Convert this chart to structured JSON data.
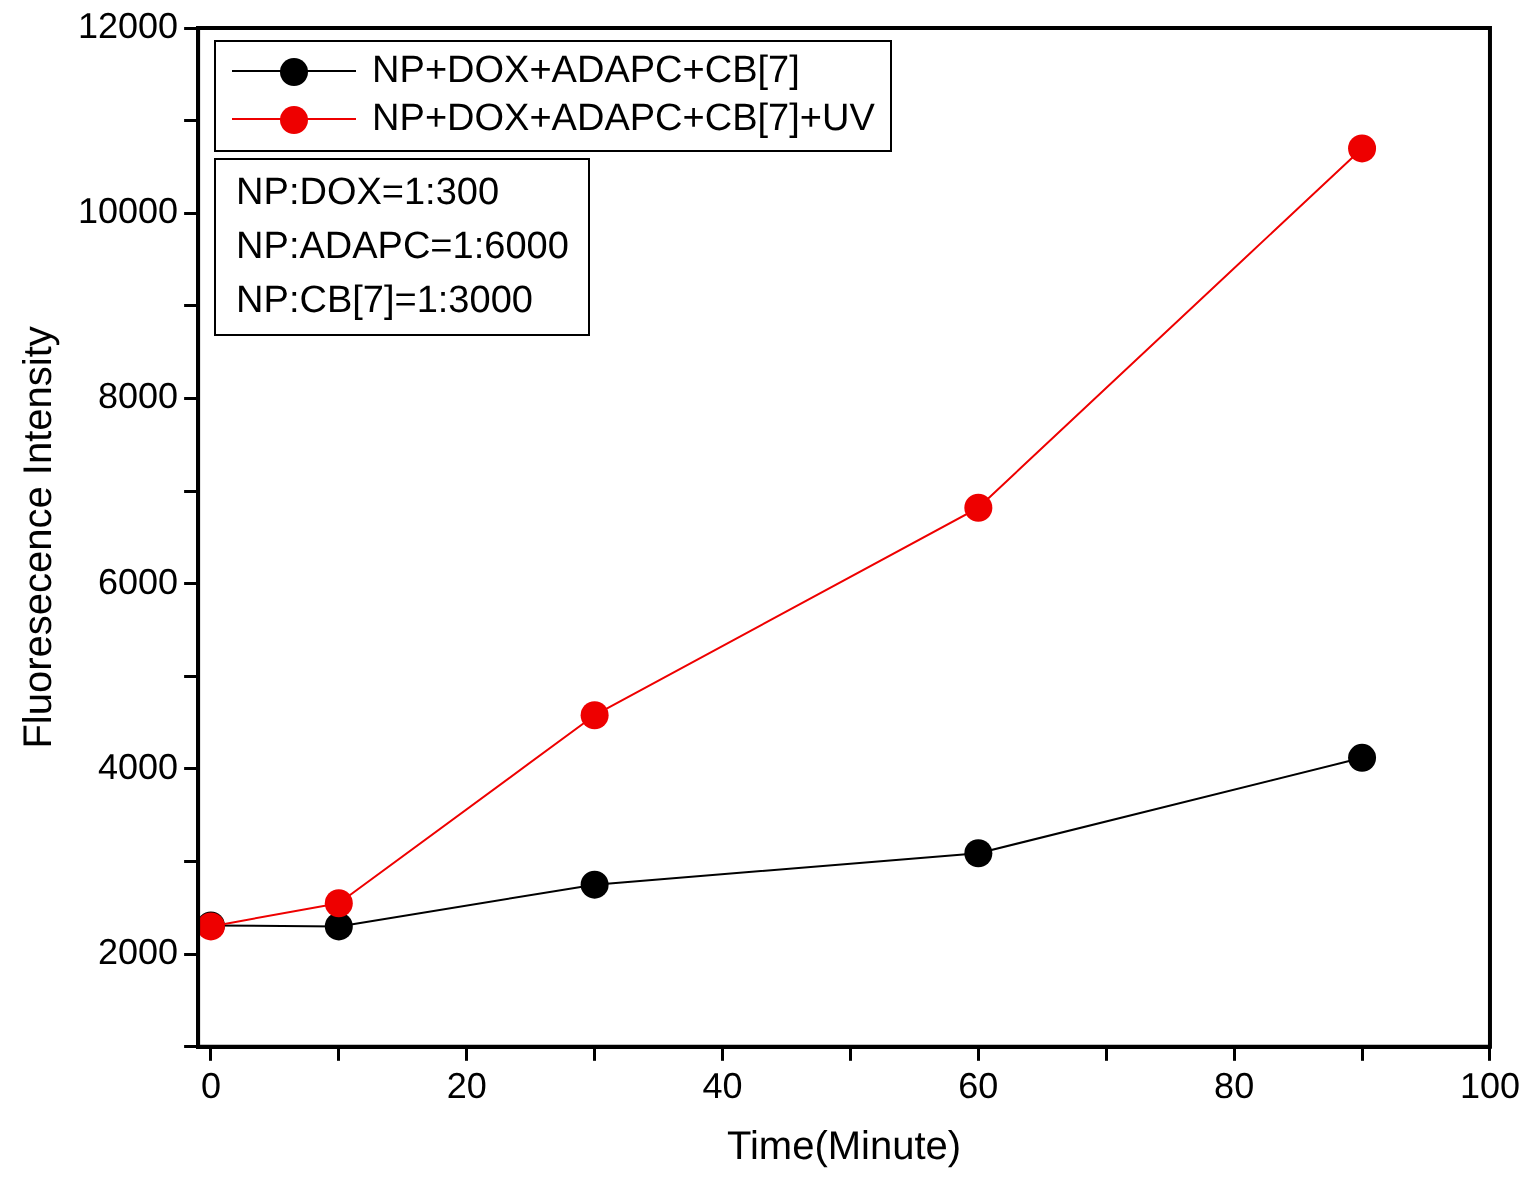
{
  "chart_data": {
    "type": "line",
    "xlabel": "Time(Minute)",
    "ylabel": "Fluoresecence Intensity",
    "x": [
      0,
      10,
      30,
      60,
      90
    ],
    "series": [
      {
        "name": "NP+DOX+ADAPC+CB[7]",
        "color": "#000000",
        "values": [
          2310,
          2300,
          2750,
          3090,
          4120
        ]
      },
      {
        "name": "NP+DOX+ADAPC+CB[7]+UV",
        "color": "#ee0000",
        "values": [
          2300,
          2550,
          4580,
          6820,
          10700
        ]
      }
    ],
    "xlim": [
      -1,
      100
    ],
    "ylim": [
      1000,
      12000
    ],
    "xticks": [
      0,
      {
        "value": 10,
        "label": null
      },
      20,
      {
        "value": 30,
        "label": null
      },
      40,
      {
        "value": 50,
        "label": null
      },
      60,
      {
        "value": 70,
        "label": null
      },
      80,
      {
        "value": 90,
        "label": null
      },
      100
    ],
    "yticks": [
      {
        "value": 1000,
        "label": null
      },
      2000,
      {
        "value": 3000,
        "label": null
      },
      4000,
      {
        "value": 5000,
        "label": null
      },
      6000,
      {
        "value": 7000,
        "label": null
      },
      8000,
      {
        "value": 9000,
        "label": null
      },
      10000,
      {
        "value": 11000,
        "label": null
      },
      12000
    ],
    "legend": "top left",
    "marker": "circle",
    "line_style": "solid",
    "grid": false,
    "annotations": [
      "NP:DOX=1:300",
      "NP:ADAPC=1:6000",
      "NP:CB[7]=1:3000"
    ]
  }
}
